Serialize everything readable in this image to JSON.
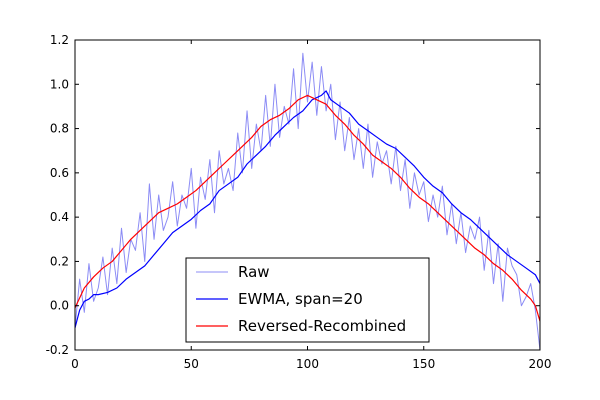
{
  "chart_data": {
    "type": "line",
    "title": "",
    "xlabel": "",
    "ylabel": "",
    "xlim": [
      0,
      200
    ],
    "ylim": [
      -0.2,
      1.2
    ],
    "xticks": [
      "0",
      "50",
      "100",
      "150",
      "200"
    ],
    "yticks": [
      "-0.2",
      "0.0",
      "0.2",
      "0.4",
      "0.6",
      "0.8",
      "1.0",
      "1.2"
    ],
    "grid": false,
    "legend_position": "lower center",
    "colors": {
      "raw": "#8c8cf5",
      "ewma": "#0000ff",
      "recombined": "#ff0000"
    },
    "series": [
      {
        "name": "Raw",
        "x": [
          0,
          2,
          4,
          6,
          8,
          10,
          12,
          14,
          16,
          18,
          20,
          22,
          24,
          26,
          28,
          30,
          32,
          34,
          36,
          38,
          40,
          42,
          44,
          46,
          48,
          50,
          52,
          54,
          56,
          58,
          60,
          62,
          64,
          66,
          68,
          70,
          72,
          74,
          76,
          78,
          80,
          82,
          84,
          86,
          88,
          90,
          92,
          94,
          96,
          98,
          100,
          102,
          104,
          106,
          108,
          110,
          112,
          114,
          116,
          118,
          120,
          122,
          124,
          126,
          128,
          130,
          132,
          134,
          136,
          138,
          140,
          142,
          144,
          146,
          148,
          150,
          152,
          154,
          156,
          158,
          160,
          162,
          164,
          166,
          168,
          170,
          172,
          174,
          176,
          178,
          180,
          182,
          184,
          186,
          188,
          190,
          192,
          194,
          196,
          198,
          200
        ],
        "y": [
          -0.1,
          0.12,
          -0.03,
          0.19,
          0.02,
          0.08,
          0.22,
          0.05,
          0.26,
          0.1,
          0.35,
          0.15,
          0.3,
          0.25,
          0.42,
          0.2,
          0.55,
          0.3,
          0.5,
          0.34,
          0.4,
          0.56,
          0.36,
          0.5,
          0.44,
          0.62,
          0.35,
          0.58,
          0.48,
          0.66,
          0.42,
          0.7,
          0.55,
          0.62,
          0.52,
          0.78,
          0.6,
          0.88,
          0.62,
          0.82,
          0.7,
          0.95,
          0.72,
          1.0,
          0.76,
          0.9,
          0.82,
          1.07,
          0.8,
          1.14,
          0.92,
          1.1,
          0.86,
          1.08,
          0.88,
          1.0,
          0.75,
          0.92,
          0.7,
          0.85,
          0.66,
          0.8,
          0.62,
          0.82,
          0.58,
          0.74,
          0.64,
          0.7,
          0.55,
          0.72,
          0.52,
          0.66,
          0.44,
          0.6,
          0.5,
          0.56,
          0.38,
          0.5,
          0.4,
          0.54,
          0.32,
          0.46,
          0.28,
          0.42,
          0.24,
          0.36,
          0.3,
          0.4,
          0.16,
          0.34,
          0.1,
          0.28,
          0.02,
          0.26,
          0.18,
          0.14,
          0.0,
          0.04,
          0.1,
          -0.02,
          -0.2
        ]
      },
      {
        "name": "EWMA, span=20",
        "x": [
          0,
          2,
          4,
          6,
          8,
          10,
          14,
          18,
          22,
          26,
          30,
          34,
          38,
          42,
          46,
          50,
          54,
          58,
          62,
          66,
          70,
          74,
          78,
          82,
          86,
          90,
          94,
          98,
          102,
          106,
          108,
          110,
          114,
          118,
          122,
          126,
          130,
          134,
          138,
          142,
          146,
          150,
          154,
          158,
          162,
          166,
          170,
          174,
          178,
          182,
          186,
          190,
          194,
          198,
          200
        ],
        "y": [
          -0.1,
          -0.02,
          0.02,
          0.03,
          0.05,
          0.05,
          0.06,
          0.08,
          0.12,
          0.15,
          0.18,
          0.23,
          0.28,
          0.33,
          0.36,
          0.39,
          0.43,
          0.46,
          0.52,
          0.55,
          0.58,
          0.64,
          0.68,
          0.72,
          0.77,
          0.81,
          0.85,
          0.88,
          0.93,
          0.95,
          0.97,
          0.93,
          0.9,
          0.87,
          0.82,
          0.79,
          0.76,
          0.73,
          0.71,
          0.67,
          0.63,
          0.58,
          0.54,
          0.51,
          0.46,
          0.42,
          0.39,
          0.35,
          0.31,
          0.27,
          0.23,
          0.2,
          0.17,
          0.14,
          0.1
        ]
      },
      {
        "name": "Reversed-Recombined",
        "x": [
          0,
          4,
          8,
          12,
          16,
          20,
          24,
          28,
          32,
          36,
          40,
          44,
          48,
          52,
          56,
          60,
          64,
          68,
          72,
          76,
          80,
          84,
          88,
          92,
          96,
          100,
          104,
          108,
          112,
          116,
          120,
          124,
          128,
          132,
          136,
          140,
          144,
          148,
          152,
          156,
          160,
          164,
          168,
          172,
          176,
          180,
          184,
          188,
          192,
          196,
          198,
          200
        ],
        "y": [
          -0.01,
          0.08,
          0.13,
          0.17,
          0.2,
          0.25,
          0.3,
          0.34,
          0.38,
          0.42,
          0.44,
          0.46,
          0.49,
          0.52,
          0.56,
          0.6,
          0.64,
          0.68,
          0.72,
          0.76,
          0.81,
          0.84,
          0.86,
          0.89,
          0.93,
          0.95,
          0.93,
          0.91,
          0.86,
          0.82,
          0.77,
          0.73,
          0.68,
          0.65,
          0.62,
          0.58,
          0.53,
          0.49,
          0.46,
          0.42,
          0.38,
          0.34,
          0.3,
          0.26,
          0.23,
          0.19,
          0.16,
          0.12,
          0.07,
          0.03,
          0.0,
          -0.07
        ]
      }
    ]
  }
}
